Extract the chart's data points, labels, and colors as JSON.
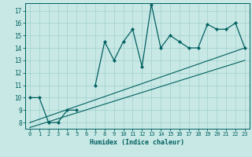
{
  "xlabel": "Humidex (Indice chaleur)",
  "bg_color": "#c8e8e5",
  "line_color": "#006060",
  "grid_color": "#a0d0cc",
  "x_data": [
    0,
    1,
    2,
    3,
    4,
    5,
    6,
    7,
    8,
    9,
    10,
    11,
    12,
    13,
    14,
    15,
    16,
    17,
    18,
    19,
    20,
    21,
    22,
    23
  ],
  "y_main": [
    10,
    10,
    8,
    8,
    9,
    9,
    null,
    11,
    14.5,
    13,
    14.5,
    15.5,
    12.5,
    17.5,
    14,
    15,
    14.5,
    14,
    14,
    15.9,
    15.5,
    15.5,
    16,
    14
  ],
  "trend1_x": [
    0,
    23
  ],
  "trend1_y": [
    8.0,
    14.0
  ],
  "trend2_x": [
    0,
    23
  ],
  "trend2_y": [
    7.6,
    13.0
  ],
  "xlim": [
    -0.5,
    23.5
  ],
  "ylim": [
    7.5,
    17.6
  ],
  "yticks": [
    8,
    9,
    10,
    11,
    12,
    13,
    14,
    15,
    16,
    17
  ],
  "xticks": [
    0,
    1,
    2,
    3,
    4,
    5,
    6,
    7,
    8,
    9,
    10,
    11,
    12,
    13,
    14,
    15,
    16,
    17,
    18,
    19,
    20,
    21,
    22,
    23
  ]
}
